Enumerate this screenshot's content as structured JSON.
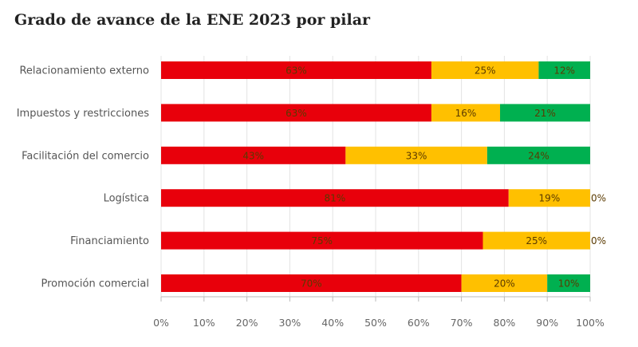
{
  "chart_data": {
    "type": "bar",
    "orientation": "horizontal",
    "stacked": true,
    "title": "Grado de avance de la ENE 2023 por pilar",
    "categories": [
      "Relacionamiento externo",
      "Impuestos y restricciones",
      "Facilitación del comercio",
      "Logística",
      "Financiamiento",
      "Promoción comercial"
    ],
    "series": [
      {
        "name": "Rojo",
        "color": "#e8000b",
        "values": [
          63,
          63,
          43,
          81,
          75,
          70
        ],
        "labels": [
          "63%",
          "63%",
          "43%",
          "81%",
          "75%",
          "70%"
        ]
      },
      {
        "name": "Amarillo",
        "color": "#ffc000",
        "values": [
          25,
          16,
          33,
          19,
          25,
          20
        ],
        "labels": [
          "25%",
          "16%",
          "33%",
          "19%",
          "25%",
          "20%"
        ]
      },
      {
        "name": "Verde",
        "color": "#00b050",
        "values": [
          12,
          21,
          24,
          0,
          0,
          10
        ],
        "labels": [
          "12%",
          "21%",
          "24%",
          "0%",
          "0%",
          "10%"
        ]
      }
    ],
    "xticks": [
      "0%",
      "10%",
      "20%",
      "30%",
      "40%",
      "50%",
      "60%",
      "70%",
      "80%",
      "90%",
      "100%"
    ],
    "xlim": [
      0,
      100
    ],
    "grid": true,
    "xlabel": "",
    "ylabel": ""
  }
}
